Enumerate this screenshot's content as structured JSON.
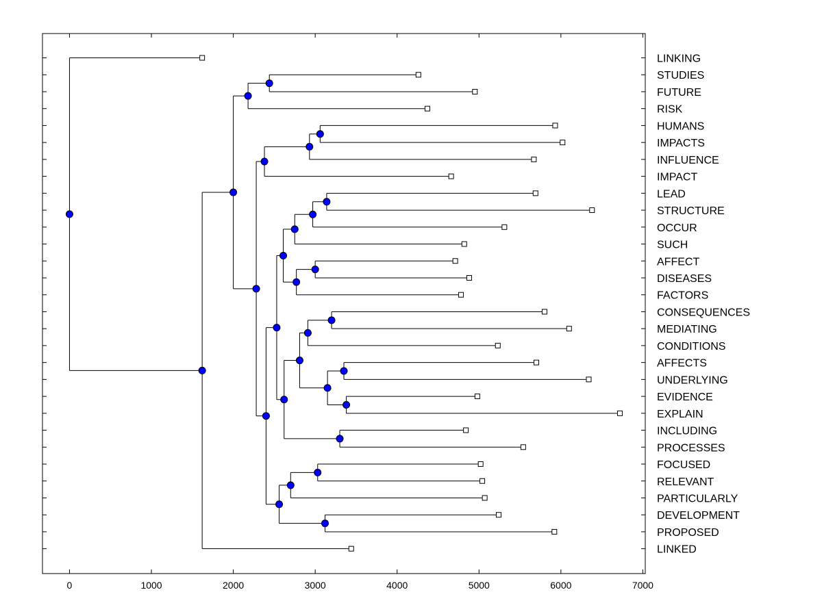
{
  "chart_data": {
    "type": "dendrogram",
    "orientation": "horizontal",
    "title": "",
    "xlabel": "",
    "ylabel": "",
    "xlim": [
      -330,
      7030
    ],
    "xticks": [
      0,
      1000,
      2000,
      3000,
      4000,
      5000,
      6000,
      7000
    ],
    "xtick_labels": [
      "0",
      "1000",
      "2000",
      "3000",
      "4000",
      "5000",
      "6000",
      "7000"
    ],
    "leaves": [
      {
        "label": "LINKING",
        "value": 1620
      },
      {
        "label": "STUDIES",
        "value": 4260
      },
      {
        "label": "FUTURE",
        "value": 4950
      },
      {
        "label": "RISK",
        "value": 4370
      },
      {
        "label": "HUMANS",
        "value": 5930
      },
      {
        "label": "IMPACTS",
        "value": 6020
      },
      {
        "label": "INFLUENCE",
        "value": 5670
      },
      {
        "label": "IMPACT",
        "value": 4660
      },
      {
        "label": "LEAD",
        "value": 5690
      },
      {
        "label": "STRUCTURE",
        "value": 6380
      },
      {
        "label": "OCCUR",
        "value": 5310
      },
      {
        "label": "SUCH",
        "value": 4820
      },
      {
        "label": "AFFECT",
        "value": 4710
      },
      {
        "label": "DISEASES",
        "value": 4880
      },
      {
        "label": "FACTORS",
        "value": 4780
      },
      {
        "label": "CONSEQUENCES",
        "value": 5800
      },
      {
        "label": "MEDIATING",
        "value": 6100
      },
      {
        "label": "CONDITIONS",
        "value": 5230
      },
      {
        "label": "AFFECTS",
        "value": 5700
      },
      {
        "label": "UNDERLYING",
        "value": 6340
      },
      {
        "label": "EVIDENCE",
        "value": 4980
      },
      {
        "label": "EXPLAIN",
        "value": 6720
      },
      {
        "label": "INCLUDING",
        "value": 4840
      },
      {
        "label": "PROCESSES",
        "value": 5540
      },
      {
        "label": "FOCUSED",
        "value": 5020
      },
      {
        "label": "RELEVANT",
        "value": 5040
      },
      {
        "label": "PARTICULARLY",
        "value": 5070
      },
      {
        "label": "DEVELOPMENT",
        "value": 5240
      },
      {
        "label": "PROPOSED",
        "value": 5920
      },
      {
        "label": "LINKED",
        "value": 3440
      }
    ],
    "merges": [
      {
        "id": "n1",
        "value": 2440,
        "children": [
          "L1",
          "L2"
        ]
      },
      {
        "id": "n2",
        "value": 2180,
        "children": [
          "n1",
          "L3"
        ]
      },
      {
        "id": "n3",
        "value": 3060,
        "children": [
          "L4",
          "L5"
        ]
      },
      {
        "id": "n4",
        "value": 2930,
        "children": [
          "n3",
          "L6"
        ]
      },
      {
        "id": "n5",
        "value": 2380,
        "children": [
          "n4",
          "L7"
        ]
      },
      {
        "id": "n6",
        "value": 3140,
        "children": [
          "L8",
          "L9"
        ]
      },
      {
        "id": "n7",
        "value": 2970,
        "children": [
          "n6",
          "L10"
        ]
      },
      {
        "id": "n8",
        "value": 2750,
        "children": [
          "n7",
          "L11"
        ]
      },
      {
        "id": "n9",
        "value": 3000,
        "children": [
          "L12",
          "L13"
        ]
      },
      {
        "id": "n10",
        "value": 2770,
        "children": [
          "n9",
          "L14"
        ]
      },
      {
        "id": "n11",
        "value": 2610,
        "children": [
          "n8",
          "n10"
        ]
      },
      {
        "id": "n12",
        "value": 3200,
        "children": [
          "L15",
          "L16"
        ]
      },
      {
        "id": "n13",
        "value": 2910,
        "children": [
          "n12",
          "L17"
        ]
      },
      {
        "id": "n14",
        "value": 3350,
        "children": [
          "L18",
          "L19"
        ]
      },
      {
        "id": "n15",
        "value": 3380,
        "children": [
          "L20",
          "L21"
        ]
      },
      {
        "id": "n16",
        "value": 3150,
        "children": [
          "n14",
          "n15"
        ]
      },
      {
        "id": "n17",
        "value": 2810,
        "children": [
          "n13",
          "n16"
        ]
      },
      {
        "id": "n18",
        "value": 3300,
        "children": [
          "L22",
          "L23"
        ]
      },
      {
        "id": "n19",
        "value": 2620,
        "children": [
          "n17",
          "n18"
        ]
      },
      {
        "id": "n20",
        "value": 2530,
        "children": [
          "n11",
          "n19"
        ]
      },
      {
        "id": "n21",
        "value": 3030,
        "children": [
          "L24",
          "L25"
        ]
      },
      {
        "id": "n22",
        "value": 2700,
        "children": [
          "n21",
          "L26"
        ]
      },
      {
        "id": "n23",
        "value": 3120,
        "children": [
          "L27",
          "L28"
        ]
      },
      {
        "id": "n24",
        "value": 2560,
        "children": [
          "n22",
          "n23"
        ]
      },
      {
        "id": "n25",
        "value": 2400,
        "children": [
          "n20",
          "n24"
        ]
      },
      {
        "id": "n26",
        "value": 2280,
        "children": [
          "n5",
          "n25"
        ]
      },
      {
        "id": "n27",
        "value": 2000,
        "children": [
          "n2",
          "n26"
        ]
      },
      {
        "id": "n28",
        "value": 1620,
        "children": [
          "n27",
          "L29"
        ]
      },
      {
        "id": "n29",
        "value": 0,
        "children": [
          "L0",
          "n28"
        ]
      }
    ],
    "colors": {
      "node_fill": "#0000ff",
      "leaf_fill": "#ffffff",
      "line": "#000000"
    }
  }
}
